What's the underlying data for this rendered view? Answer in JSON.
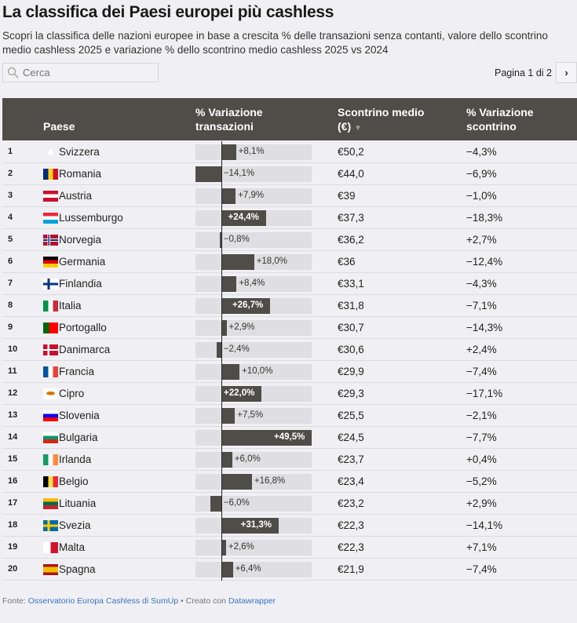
{
  "title": "La classifica dei Paesi europei più cashless",
  "description": "Scopri la classifica delle nazioni europee in base a crescita % delle transazioni senza contanti, valore dello scontrino medio cashless 2025 e variazione % dello scontrino medio cashless 2025 vs 2024",
  "search": {
    "placeholder": "Cerca"
  },
  "pagination": {
    "label": "Pagina 1 di 2",
    "next": "›"
  },
  "columns": {
    "country": "Paese",
    "transactions": "% Variazione transazioni",
    "receipt": "Scontrino medio (€)",
    "sort_indicator": "▼",
    "receipt_change": "% Variazione scontrino"
  },
  "colors": {
    "bar": "#4f4d48",
    "bar_bg": "#dfdfe3",
    "header": "#4f4d48",
    "link": "#3b73c4"
  },
  "chart_data": {
    "type": "table",
    "bar_column": "% Variazione transazioni",
    "bar_domain": [
      -14.1,
      49.5
    ],
    "rows": [
      {
        "rank": "1",
        "country": "Svizzera",
        "tx": 8.1,
        "tx_label": "+8,1%",
        "receipt": "€50,2",
        "change": "−4,3%"
      },
      {
        "rank": "2",
        "country": "Romania",
        "tx": -14.1,
        "tx_label": "−14,1%",
        "receipt": "€44,0",
        "change": "−6,9%"
      },
      {
        "rank": "3",
        "country": "Austria",
        "tx": 7.9,
        "tx_label": "+7,9%",
        "receipt": "€39",
        "change": "−1,0%"
      },
      {
        "rank": "4",
        "country": "Lussemburgo",
        "tx": 24.4,
        "tx_label": "+24,4%",
        "receipt": "€37,3",
        "change": "−18,3%"
      },
      {
        "rank": "5",
        "country": "Norvegia",
        "tx": -0.8,
        "tx_label": "−0,8%",
        "receipt": "€36,2",
        "change": "+2,7%"
      },
      {
        "rank": "6",
        "country": "Germania",
        "tx": 18.0,
        "tx_label": "+18,0%",
        "receipt": "€36",
        "change": "−12,4%"
      },
      {
        "rank": "7",
        "country": "Finlandia",
        "tx": 8.4,
        "tx_label": "+8,4%",
        "receipt": "€33,1",
        "change": "−4,3%"
      },
      {
        "rank": "8",
        "country": "Italia",
        "tx": 26.7,
        "tx_label": "+26,7%",
        "receipt": "€31,8",
        "change": "−7,1%"
      },
      {
        "rank": "9",
        "country": "Portogallo",
        "tx": 2.9,
        "tx_label": "+2,9%",
        "receipt": "€30,7",
        "change": "−14,3%"
      },
      {
        "rank": "10",
        "country": "Danimarca",
        "tx": -2.4,
        "tx_label": "−2,4%",
        "receipt": "€30,6",
        "change": "+2,4%"
      },
      {
        "rank": "11",
        "country": "Francia",
        "tx": 10.0,
        "tx_label": "+10,0%",
        "receipt": "€29,9",
        "change": "−7,4%"
      },
      {
        "rank": "12",
        "country": "Cipro",
        "tx": 22.0,
        "tx_label": "+22,0%",
        "receipt": "€29,3",
        "change": "−17,1%"
      },
      {
        "rank": "13",
        "country": "Slovenia",
        "tx": 7.5,
        "tx_label": "+7,5%",
        "receipt": "€25,5",
        "change": "−2,1%"
      },
      {
        "rank": "14",
        "country": "Bulgaria",
        "tx": 49.5,
        "tx_label": "+49,5%",
        "receipt": "€24,5",
        "change": "−7,7%"
      },
      {
        "rank": "15",
        "country": "Irlanda",
        "tx": 6.0,
        "tx_label": "+6,0%",
        "receipt": "€23,7",
        "change": "+0,4%"
      },
      {
        "rank": "16",
        "country": "Belgio",
        "tx": 16.8,
        "tx_label": "+16,8%",
        "receipt": "€23,4",
        "change": "−5,2%"
      },
      {
        "rank": "17",
        "country": "Lituania",
        "tx": -6.0,
        "tx_label": "−6,0%",
        "receipt": "€23,2",
        "change": "+2,9%"
      },
      {
        "rank": "18",
        "country": "Svezia",
        "tx": 31.3,
        "tx_label": "+31,3%",
        "receipt": "€22,3",
        "change": "−14,1%"
      },
      {
        "rank": "19",
        "country": "Malta",
        "tx": 2.6,
        "tx_label": "+2,6%",
        "receipt": "€22,3",
        "change": "+7,1%"
      },
      {
        "rank": "20",
        "country": "Spagna",
        "tx": 6.4,
        "tx_label": "+6,4%",
        "receipt": "€21,9",
        "change": "−7,4%"
      }
    ]
  },
  "footer": {
    "source_label": "Fonte:",
    "source": "Osservatorio Europa Cashless di SumUp",
    "sep": "•",
    "created": "Creato con",
    "tool": "Datawrapper"
  }
}
